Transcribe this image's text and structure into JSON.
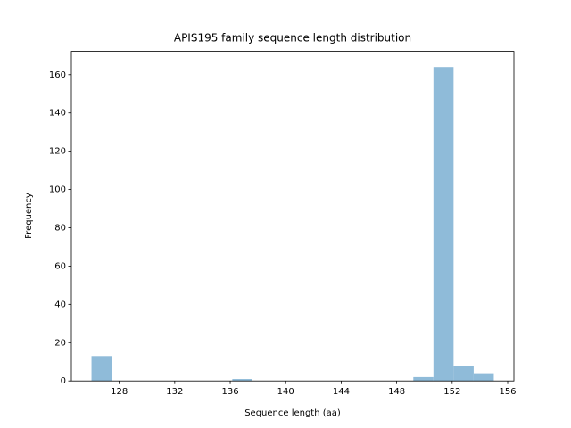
{
  "chart_data": {
    "type": "histogram",
    "title": "APIS195 family sequence length distribution",
    "x_label": "Sequence length (aa)",
    "y_label": "Frequency",
    "bins": [
      126,
      127.45,
      128.9,
      130.35,
      131.8,
      133.25,
      134.7,
      136.15,
      137.6,
      139.05,
      140.5,
      141.95,
      143.4,
      144.85,
      146.3,
      147.75,
      149.2,
      150.65,
      152.1,
      153.55,
      155
    ],
    "values": [
      13,
      0,
      0,
      0,
      0,
      0,
      0,
      1,
      0,
      0,
      0,
      0,
      0,
      0,
      0,
      0,
      2,
      164,
      8,
      4
    ],
    "color": "#8fbbd9",
    "xlim": [
      124.55,
      156.45
    ],
    "xticks": [
      128,
      132,
      136,
      140,
      144,
      148,
      152,
      156
    ],
    "ylim": [
      0,
      172.2
    ],
    "yticks": [
      0,
      20,
      40,
      60,
      80,
      100,
      120,
      140,
      160
    ]
  }
}
